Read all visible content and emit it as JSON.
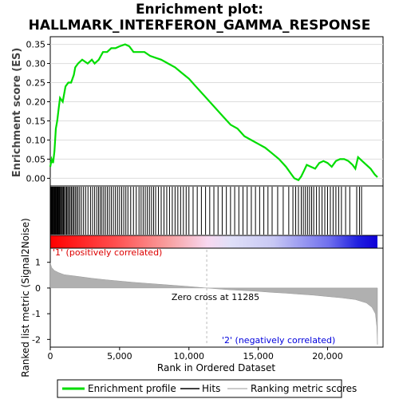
{
  "title_line1": "Enrichment plot:",
  "title_line2": "HALLMARK_INTERFERON_GAMMA_RESPONSE",
  "chart_data": {
    "type": "line",
    "panels": {
      "es": {
        "ylabel": "Enrichment score (ES)",
        "ylim": [
          -0.02,
          0.37
        ],
        "yticks": [
          0.0,
          0.05,
          0.1,
          0.15,
          0.2,
          0.25,
          0.3,
          0.35
        ],
        "ytick_labels": [
          "0.00",
          "0.05",
          "0.10",
          "0.15",
          "0.20",
          "0.25",
          "0.30",
          "0.35"
        ],
        "series": [
          {
            "name": "Enrichment profile",
            "color": "#00dd00",
            "points": [
              [
                0,
                0.03
              ],
              [
                100,
                0.05
              ],
              [
                200,
                0.04
              ],
              [
                300,
                0.07
              ],
              [
                400,
                0.13
              ],
              [
                500,
                0.15
              ],
              [
                600,
                0.18
              ],
              [
                700,
                0.21
              ],
              [
                900,
                0.2
              ],
              [
                1100,
                0.24
              ],
              [
                1300,
                0.25
              ],
              [
                1500,
                0.25
              ],
              [
                1700,
                0.27
              ],
              [
                1800,
                0.29
              ],
              [
                2000,
                0.3
              ],
              [
                2300,
                0.31
              ],
              [
                2700,
                0.3
              ],
              [
                3000,
                0.31
              ],
              [
                3200,
                0.3
              ],
              [
                3500,
                0.31
              ],
              [
                3800,
                0.33
              ],
              [
                4100,
                0.33
              ],
              [
                4400,
                0.34
              ],
              [
                4700,
                0.34
              ],
              [
                5000,
                0.345
              ],
              [
                5400,
                0.35
              ],
              [
                5700,
                0.345
              ],
              [
                6000,
                0.33
              ],
              [
                6400,
                0.33
              ],
              [
                6800,
                0.33
              ],
              [
                7200,
                0.32
              ],
              [
                7600,
                0.315
              ],
              [
                8000,
                0.31
              ],
              [
                8500,
                0.3
              ],
              [
                9000,
                0.29
              ],
              [
                9500,
                0.275
              ],
              [
                10000,
                0.26
              ],
              [
                10500,
                0.24
              ],
              [
                11000,
                0.22
              ],
              [
                11500,
                0.2
              ],
              [
                12000,
                0.18
              ],
              [
                12500,
                0.16
              ],
              [
                13000,
                0.14
              ],
              [
                13500,
                0.13
              ],
              [
                14000,
                0.11
              ],
              [
                14500,
                0.1
              ],
              [
                15000,
                0.09
              ],
              [
                15500,
                0.08
              ],
              [
                16000,
                0.065
              ],
              [
                16500,
                0.05
              ],
              [
                17000,
                0.03
              ],
              [
                17400,
                0.01
              ],
              [
                17600,
                0.0
              ],
              [
                17900,
                -0.005
              ],
              [
                18100,
                0.005
              ],
              [
                18300,
                0.02
              ],
              [
                18500,
                0.035
              ],
              [
                18800,
                0.03
              ],
              [
                19100,
                0.025
              ],
              [
                19400,
                0.04
              ],
              [
                19700,
                0.045
              ],
              [
                20000,
                0.04
              ],
              [
                20300,
                0.03
              ],
              [
                20600,
                0.045
              ],
              [
                20900,
                0.05
              ],
              [
                21200,
                0.05
              ],
              [
                21500,
                0.045
              ],
              [
                21800,
                0.035
              ],
              [
                22000,
                0.025
              ],
              [
                22200,
                0.055
              ],
              [
                22500,
                0.045
              ],
              [
                22800,
                0.035
              ],
              [
                23100,
                0.025
              ],
              [
                23400,
                0.01
              ],
              [
                23600,
                0.003
              ]
            ]
          }
        ]
      },
      "hits": {
        "legend_name": "Hits",
        "positions": [
          20,
          60,
          110,
          150,
          200,
          250,
          300,
          340,
          380,
          420,
          470,
          520,
          560,
          610,
          660,
          700,
          760,
          820,
          880,
          950,
          1020,
          1100,
          1180,
          1260,
          1340,
          1430,
          1520,
          1610,
          1700,
          1800,
          1900,
          2000,
          2120,
          2250,
          2400,
          2550,
          2720,
          2900,
          3050,
          3200,
          3350,
          3480,
          3600,
          3720,
          3850,
          3980,
          4120,
          4260,
          4400,
          4550,
          4700,
          4850,
          5000,
          5150,
          5300,
          5450,
          5600,
          5800,
          6000,
          6200,
          6400,
          6550,
          6700,
          6850,
          7000,
          7150,
          7300,
          7450,
          7600,
          7800,
          8000,
          8200,
          8400,
          8600,
          8800,
          9000,
          9200,
          9400,
          9600,
          9800,
          10000,
          10300,
          10600,
          10900,
          11200,
          11500,
          11800,
          12100,
          12400,
          12700,
          13000,
          13300,
          13600,
          13900,
          14200,
          14500,
          14800,
          15100,
          15400,
          15700,
          16000,
          16400,
          16800,
          17200,
          17500,
          17700,
          17900,
          18100,
          18250,
          18400,
          18550,
          18700,
          18850,
          19000,
          19200,
          19400,
          19600,
          19800,
          20000,
          20200,
          20400,
          20600,
          20800,
          21000,
          21300,
          21600,
          22100,
          22300,
          22450
        ]
      },
      "ranked_bar": {
        "left_label": "'1' (positively correlated)",
        "right_label": "'2' (negatively correlated)"
      },
      "metric": {
        "ylabel": "Ranked list metric (Signal2Noise)",
        "ylim": [
          -2.3,
          1.55
        ],
        "yticks": [
          1,
          0,
          -1,
          -2
        ],
        "ytick_labels": [
          "1",
          "0",
          "-1",
          "-2"
        ],
        "zero_cross_label": "Zero cross at 11285",
        "zero_cross": 11285,
        "legend_name": "Ranking metric scores",
        "points": [
          [
            0,
            0.98
          ],
          [
            100,
            0.8
          ],
          [
            300,
            0.68
          ],
          [
            600,
            0.6
          ],
          [
            1000,
            0.52
          ],
          [
            2000,
            0.45
          ],
          [
            3000,
            0.38
          ],
          [
            4000,
            0.32
          ],
          [
            5000,
            0.27
          ],
          [
            6000,
            0.22
          ],
          [
            7000,
            0.18
          ],
          [
            8000,
            0.14
          ],
          [
            9000,
            0.1
          ],
          [
            10000,
            0.06
          ],
          [
            11285,
            0.0
          ],
          [
            12000,
            -0.03
          ],
          [
            13000,
            -0.07
          ],
          [
            14000,
            -0.1
          ],
          [
            15000,
            -0.13
          ],
          [
            16000,
            -0.17
          ],
          [
            17000,
            -0.2
          ],
          [
            18000,
            -0.24
          ],
          [
            19000,
            -0.28
          ],
          [
            20000,
            -0.33
          ],
          [
            21000,
            -0.38
          ],
          [
            22000,
            -0.45
          ],
          [
            22800,
            -0.58
          ],
          [
            23200,
            -0.75
          ],
          [
            23450,
            -1.0
          ],
          [
            23550,
            -1.5
          ],
          [
            23600,
            -2.2
          ]
        ]
      }
    },
    "xlabel": "Rank in Ordered Dataset",
    "xlim": [
      0,
      24000
    ],
    "xticks": [
      0,
      5000,
      10000,
      15000,
      20000
    ],
    "xtick_labels": [
      "0",
      "5,000",
      "10,000",
      "15,000",
      "20,000"
    ],
    "n_genes": 23600,
    "legend": [
      "Enrichment profile",
      "Hits",
      "Ranking metric scores"
    ]
  }
}
